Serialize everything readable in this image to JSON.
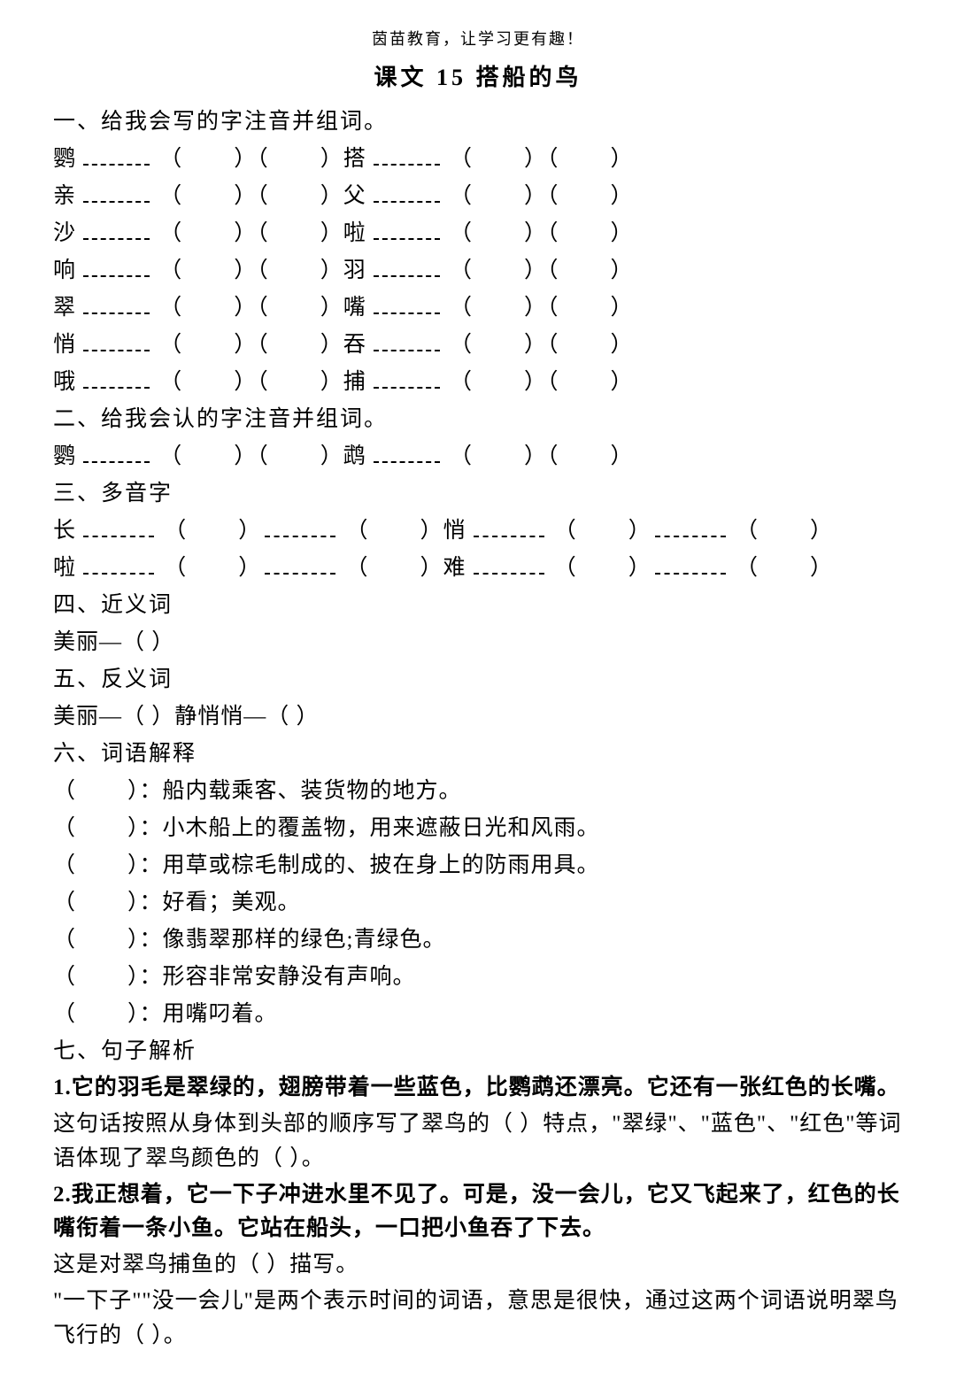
{
  "header": "茵苗教育，让学习更有趣！",
  "title": "课文 15  搭船的鸟",
  "sections": {
    "s1": {
      "heading": "一、给我会写的字注音并组词。",
      "rows": [
        {
          "c1": "鹦",
          "c2": "搭"
        },
        {
          "c1": "亲",
          "c2": "父"
        },
        {
          "c1": "沙",
          "c2": "啦"
        },
        {
          "c1": "响",
          "c2": "羽"
        },
        {
          "c1": "翠",
          "c2": "嘴"
        },
        {
          "c1": "悄",
          "c2": "吞"
        },
        {
          "c1": "哦",
          "c2": "捕"
        }
      ]
    },
    "s2": {
      "heading": "二、给我会认的字注音并组词。",
      "rows": [
        {
          "c1": "鹦",
          "c2": "鹉"
        }
      ]
    },
    "s3": {
      "heading": "三、多音字",
      "rows": [
        {
          "c1": "长",
          "c2": "悄"
        },
        {
          "c1": "啦",
          "c2": "难"
        }
      ]
    },
    "s4": {
      "heading": "四、近义词",
      "line": "美丽—（        ）"
    },
    "s5": {
      "heading": "五、反义词",
      "line": "美丽—（        ）静悄悄—（        ）"
    },
    "s6": {
      "heading": "六、词语解释",
      "defs": [
        "（        ）：船内载乘客、装货物的地方。",
        "（        ）：小木船上的覆盖物，用来遮蔽日光和风雨。",
        "（        ）：用草或棕毛制成的、披在身上的防雨用具。",
        "（        ）：好看；美观。",
        "（        ）：像翡翠那样的绿色;青绿色。",
        "（        ）：形容非常安静没有声响。",
        "（        ）：用嘴叼着。"
      ]
    },
    "s7": {
      "heading": "七、句子解析",
      "q1_bold": "1.它的羽毛是翠绿的，翅膀带着一些蓝色，比鹦鹉还漂亮。它还有一张红色的长嘴。",
      "q1_ans": "这句话按照从身体到头部的顺序写了翠鸟的（        ）特点，\"翠绿\"、\"蓝色\"、\"红色\"等词语体现了翠鸟颜色的（        ）。",
      "q2_bold": "2.我正想着，它一下子冲进水里不见了。可是，没一会儿，它又飞起来了，红色的长嘴衔着一条小鱼。它站在船头，一口把小鱼吞了下去。",
      "q2_ans1": "这是对翠鸟捕鱼的（        ）描写。",
      "q2_ans2": "\"一下子\"\"没一会儿\"是两个表示时间的词语，意思是很快，通过这两个词语说明翠鸟飞行的（        ）。"
    }
  }
}
